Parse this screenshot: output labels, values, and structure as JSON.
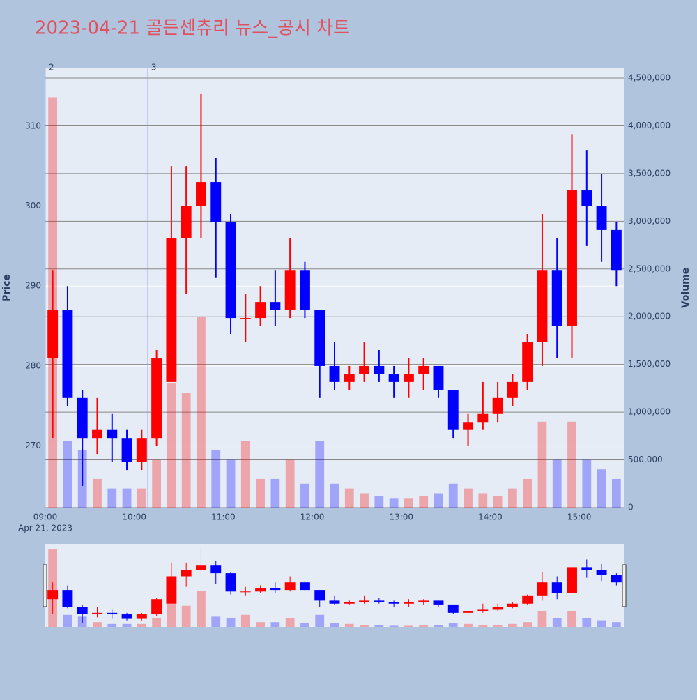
{
  "chart_data": {
    "type": "candlestick",
    "title": "2023-04-21 골든센츄리 뉴스_공시 차트",
    "y_title": "Price",
    "y2_title": "Volume",
    "x_date_label": "Apr 21, 2023",
    "increasing_color": "#ff0000",
    "decreasing_color": "#0000ff",
    "interval_minutes": 10,
    "x": [
      "09:00",
      "09:10",
      "09:20",
      "09:30",
      "09:40",
      "09:50",
      "10:00",
      "10:10",
      "10:20",
      "10:30",
      "10:40",
      "10:50",
      "11:00",
      "11:10",
      "11:20",
      "11:30",
      "11:40",
      "11:50",
      "12:00",
      "12:10",
      "12:20",
      "12:30",
      "12:40",
      "12:50",
      "13:00",
      "13:10",
      "13:20",
      "13:30",
      "13:40",
      "13:50",
      "14:00",
      "14:10",
      "14:20",
      "14:30",
      "14:40",
      "14:50",
      "15:00",
      "15:10",
      "15:20"
    ],
    "open": [
      281,
      287,
      276,
      271,
      272,
      271,
      268,
      271,
      278,
      296,
      300,
      303,
      298,
      286,
      286,
      288,
      287,
      292,
      287,
      280,
      278,
      279,
      280,
      279,
      278,
      279,
      280,
      277,
      272,
      273,
      274,
      276,
      278,
      283,
      292,
      285,
      302,
      300,
      297
    ],
    "high": [
      292,
      290,
      277,
      276,
      274,
      272,
      272,
      282,
      305,
      305,
      314,
      306,
      299,
      289,
      290,
      292,
      296,
      293,
      287,
      283,
      280,
      283,
      282,
      280,
      281,
      281,
      280,
      277,
      274,
      278,
      278,
      279,
      284,
      299,
      296,
      309,
      307,
      304,
      298
    ],
    "low": [
      271,
      275,
      265,
      269,
      268,
      267,
      267,
      270,
      278,
      289,
      296,
      291,
      284,
      283,
      285,
      285,
      286,
      286,
      276,
      277,
      277,
      278,
      278,
      276,
      276,
      277,
      276,
      271,
      270,
      272,
      273,
      275,
      277,
      280,
      281,
      281,
      295,
      293,
      290
    ],
    "close": [
      287,
      276,
      271,
      272,
      271,
      268,
      271,
      281,
      296,
      300,
      303,
      298,
      286,
      286,
      288,
      287,
      292,
      287,
      280,
      278,
      279,
      280,
      279,
      278,
      279,
      280,
      277,
      272,
      273,
      274,
      276,
      278,
      283,
      292,
      285,
      302,
      300,
      297,
      292
    ],
    "volume": [
      4300000,
      700000,
      600000,
      300000,
      200000,
      200000,
      200000,
      500000,
      1300000,
      1200000,
      2000000,
      600000,
      500000,
      700000,
      300000,
      300000,
      500000,
      250000,
      700000,
      250000,
      200000,
      150000,
      120000,
      100000,
      100000,
      120000,
      150000,
      250000,
      200000,
      150000,
      120000,
      200000,
      300000,
      900000,
      500000,
      900000,
      500000,
      400000,
      300000
    ],
    "xlim": [
      "09:00",
      "15:30"
    ],
    "xticks": [
      "09:00",
      "10:00",
      "11:00",
      "12:00",
      "13:00",
      "14:00",
      "15:00"
    ],
    "ylim": [
      262.3,
      317.3
    ],
    "yticks": [
      270,
      280,
      290,
      300,
      310
    ],
    "y2lim": [
      0,
      4610000
    ],
    "y2ticks": [
      0,
      {
        "value": 500000,
        "label": "500,000"
      },
      {
        "value": 1000000,
        "label": "1,000,000"
      },
      {
        "value": 1500000,
        "label": "1,500,000"
      },
      {
        "value": 2000000,
        "label": "2,000,000"
      },
      {
        "value": 2500000,
        "label": "2,500,000"
      },
      {
        "value": 3000000,
        "label": "3,000,000"
      },
      {
        "value": 3500000,
        "label": "3,500,000"
      },
      {
        "value": 4000000,
        "label": "4,000,000"
      },
      {
        "value": 4500000,
        "label": "4,500,000"
      }
    ],
    "annotations": [
      {
        "x": "09:00",
        "text": "2"
      },
      {
        "x": "10:09",
        "text": "3"
      }
    ]
  }
}
